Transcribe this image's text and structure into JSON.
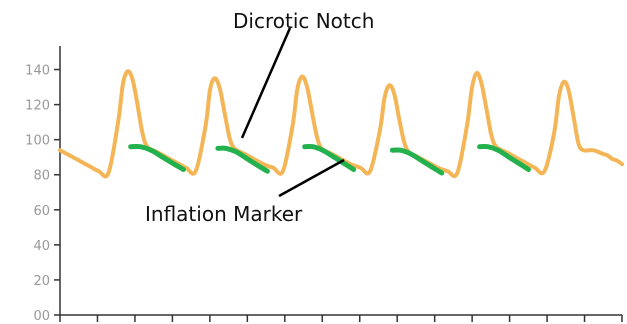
{
  "chart_data": {
    "type": "line",
    "title": "",
    "xlabel": "",
    "ylabel": "",
    "ylim": [
      0,
      150
    ],
    "yticks": [
      0,
      20,
      40,
      60,
      80,
      100,
      120,
      140
    ],
    "ytick_labels": [
      "00",
      "20",
      "40",
      "60",
      "80",
      "100",
      "120",
      "140"
    ],
    "grid": false,
    "legend": "none",
    "series": [
      {
        "role": "pressure",
        "color": "#f4b556",
        "x": [
          0,
          2,
          4,
          6,
          8,
          10,
          12,
          13,
          14,
          15,
          16,
          17,
          18,
          20,
          22,
          24,
          26,
          28,
          30,
          31,
          32,
          33,
          34,
          35,
          36,
          38,
          40,
          42,
          44,
          46,
          48,
          49,
          50,
          51,
          52,
          53,
          54,
          56,
          58,
          60,
          62,
          64,
          66,
          67,
          68,
          69,
          70,
          71,
          72,
          74,
          76,
          78,
          80,
          82,
          84,
          85,
          86,
          87,
          88,
          89,
          90,
          92,
          94,
          96,
          98,
          100,
          102,
          103,
          104,
          105,
          106,
          107,
          108,
          110,
          112,
          113,
          114,
          115,
          116
        ],
        "y": [
          94,
          91,
          88,
          85,
          82,
          81,
          110,
          132,
          139,
          134,
          120,
          104,
          96,
          93,
          90,
          87,
          84,
          82,
          107,
          129,
          135,
          129,
          115,
          101,
          95,
          92,
          89,
          86,
          84,
          82,
          108,
          129,
          136,
          130,
          116,
          102,
          95,
          92,
          89,
          86,
          84,
          82,
          105,
          124,
          131,
          126,
          112,
          99,
          93,
          90,
          87,
          84,
          82,
          81,
          108,
          129,
          138,
          132,
          118,
          103,
          96,
          93,
          90,
          87,
          84,
          82,
          104,
          125,
          133,
          128,
          113,
          98,
          94,
          94,
          92,
          91,
          89,
          88,
          86
        ]
      },
      {
        "role": "inflation",
        "color": "#22b14c",
        "segments": [
          {
            "x": [
              14.6,
              16.6,
              18.8,
              21.2,
              23.6,
              25.5
            ],
            "y": [
              96,
              96,
              94,
              90,
              86,
              83
            ]
          },
          {
            "x": [
              32.6,
              34.3,
              36.4,
              38.7,
              41,
              42.8
            ],
            "y": [
              95,
              95,
              93,
              89,
              85,
              82
            ]
          },
          {
            "x": [
              50.5,
              52.2,
              54.2,
              56.6,
              58.9,
              60.6
            ],
            "y": [
              96,
              96,
              94,
              90,
              86,
              83
            ]
          },
          {
            "x": [
              68.6,
              70.3,
              72.3,
              74.7,
              77,
              78.8
            ],
            "y": [
              94,
              94,
              92,
              88,
              84,
              81
            ]
          },
          {
            "x": [
              86.6,
              88.3,
              90.4,
              92.7,
              95,
              96.7
            ],
            "y": [
              96,
              96,
              94,
              90,
              86,
              83
            ]
          }
        ]
      }
    ],
    "annotations": [
      {
        "text": "Dicrotic Notch"
      },
      {
        "text": "Inflation Marker"
      }
    ]
  }
}
